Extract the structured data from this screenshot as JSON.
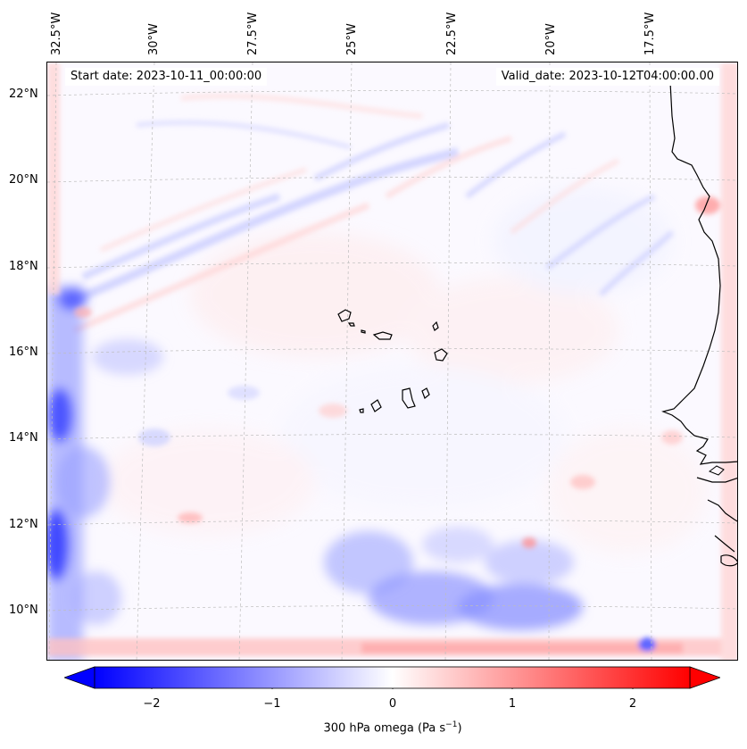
{
  "map": {
    "projection_note": "",
    "longitude_labels": [
      "32.5°W",
      "30°W",
      "27.5°W",
      "25°W",
      "22.5°W",
      "20°W",
      "17.5°W"
    ],
    "latitude_labels": [
      "22°N",
      "20°N",
      "18°N",
      "16°N",
      "14°N",
      "12°N",
      "10°N"
    ],
    "start_date_text": "Start date: 2023-10-11_00:00:00",
    "valid_date_text": "Valid_date: 2023-10-12T04:00:00.00",
    "land_features": [
      "coastline-west-africa",
      "cape-verde-islands"
    ],
    "field_variable": "300 hPa omega"
  },
  "colorbar": {
    "label_main": "300 hPa omega (Pa s",
    "label_exp": "−1",
    "label_close": ")",
    "ticks": [
      "−2",
      "−1",
      "0",
      "1",
      "2"
    ],
    "tick_values": [
      -2,
      -1,
      0,
      1,
      2
    ],
    "range": [
      -2.6,
      2.6
    ],
    "colormap": "bwr",
    "colors": {
      "negative": "#0000ff",
      "zero": "#ffffff",
      "positive": "#ff0000"
    }
  }
}
